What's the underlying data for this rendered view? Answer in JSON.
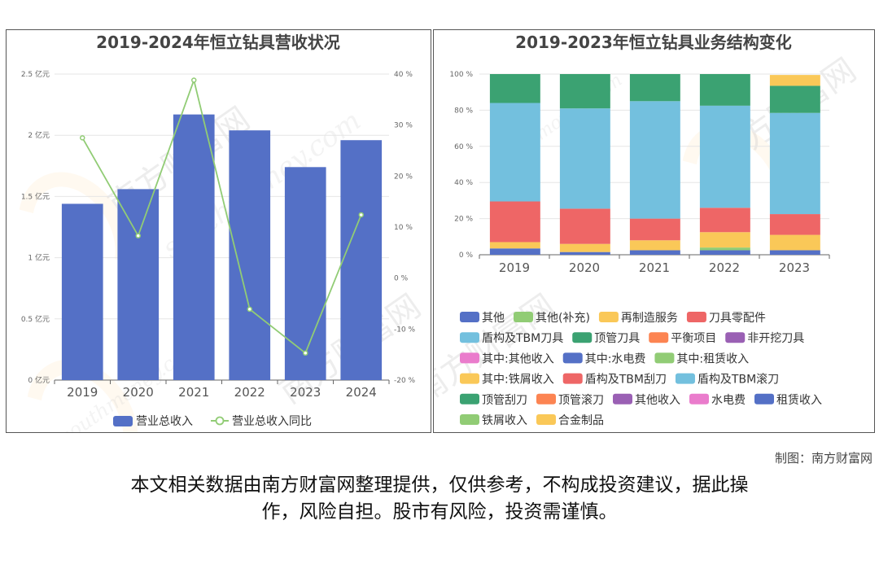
{
  "credit": "制图：南方财富网",
  "disclaimer": {
    "line1": "本文相关数据由南方财富网整理提供，仅供参考，不构成投资建议，据此操",
    "line2": "作，风险自担。股市有风险，投资需谨慎。"
  },
  "watermark": {
    "text_cn": "南方财富网",
    "text_en": "southmoney.com"
  },
  "chart_data": [
    {
      "type": "bar",
      "title": "2019-2024年恒立钻具营收状况",
      "categories": [
        "2019",
        "2020",
        "2021",
        "2022",
        "2023",
        "2024"
      ],
      "series": [
        {
          "name": "营业总收入",
          "kind": "bar",
          "axis": "left",
          "color": "#5470c6",
          "values": [
            1.44,
            1.56,
            2.17,
            2.04,
            1.74,
            1.96
          ]
        },
        {
          "name": "营业总收入同比",
          "kind": "line",
          "axis": "right",
          "color": "#91cc75",
          "values": [
            27.5,
            8.3,
            38.8,
            -6.1,
            -14.7,
            12.4
          ]
        }
      ],
      "y_left": {
        "min": 0,
        "max": 2.5,
        "ticks": [
          "0 亿元",
          "0.5 亿元",
          "1 亿元",
          "1.5 亿元",
          "2 亿元",
          "2.5 亿元"
        ]
      },
      "y_right": {
        "min": -20,
        "max": 40,
        "ticks": [
          "-20 %",
          "-10 %",
          "0 %",
          "10 %",
          "20 %",
          "30 %",
          "40 %"
        ]
      },
      "grid": true,
      "legend_position": "bottom"
    },
    {
      "type": "bar",
      "stacked": true,
      "title": "2019-2023年恒立钻具业务结构变化",
      "categories": [
        "2019",
        "2020",
        "2021",
        "2022",
        "2023"
      ],
      "y_axis": {
        "min": 0,
        "max": 100,
        "ticks": [
          "0 %",
          "20 %",
          "40 %",
          "60 %",
          "80 %",
          "100 %"
        ]
      },
      "series": [
        {
          "name": "其他",
          "color": "#5470c6",
          "values": [
            3.5,
            1.5,
            2.5,
            2.5,
            2.5
          ]
        },
        {
          "name": "其他(补充)",
          "color": "#91cc75",
          "values": [
            0,
            0,
            0,
            1.5,
            0
          ]
        },
        {
          "name": "再制造服务",
          "color": "#fac858",
          "values": [
            3.5,
            4.5,
            5.5,
            8.5,
            8.5
          ]
        },
        {
          "name": "刀具零配件",
          "color": "#ee6666",
          "values": [
            22.5,
            19.5,
            12,
            13.5,
            11.5
          ]
        },
        {
          "name": "盾构及TBM刀具",
          "color": "#73c0de",
          "values": [
            54.5,
            55.5,
            65,
            56.5,
            56
          ]
        },
        {
          "name": "顶管刀具",
          "color": "#3ba272",
          "values": [
            16,
            19,
            15,
            17.5,
            15
          ]
        },
        {
          "name": "平衡项目",
          "color": "#fc8452",
          "values": [
            0,
            0,
            0,
            0,
            0
          ]
        },
        {
          "name": "非开挖刀具",
          "color": "#9a60b4",
          "values": [
            0,
            0,
            0,
            0,
            0
          ]
        },
        {
          "name": "其中:其他收入",
          "color": "#ea7ccc",
          "values": [
            0,
            0,
            0,
            0,
            0
          ]
        },
        {
          "name": "其中:水电费",
          "color": "#5470c6",
          "values": [
            0,
            0,
            0,
            0,
            0
          ]
        },
        {
          "name": "其中:租赁收入",
          "color": "#91cc75",
          "values": [
            0,
            0,
            0,
            0,
            0
          ]
        },
        {
          "name": "其中:铁屑收入",
          "color": "#fac858",
          "values": [
            0,
            0,
            0,
            0,
            0
          ]
        },
        {
          "name": "盾构及TBM刮刀",
          "color": "#ee6666",
          "values": [
            0,
            0,
            0,
            0,
            0
          ]
        },
        {
          "name": "盾构及TBM滚刀",
          "color": "#73c0de",
          "values": [
            0,
            0,
            0,
            0,
            0
          ]
        },
        {
          "name": "顶管刮刀",
          "color": "#3ba272",
          "values": [
            0,
            0,
            0,
            0,
            0
          ]
        },
        {
          "name": "顶管滚刀",
          "color": "#fc8452",
          "values": [
            0,
            0,
            0,
            0,
            0
          ]
        },
        {
          "name": "其他收入",
          "color": "#9a60b4",
          "values": [
            0,
            0,
            0,
            0,
            0
          ]
        },
        {
          "name": "水电费",
          "color": "#ea7ccc",
          "values": [
            0,
            0,
            0,
            0,
            0
          ]
        },
        {
          "name": "租赁收入",
          "color": "#5470c6",
          "values": [
            0,
            0,
            0,
            0,
            0
          ]
        },
        {
          "name": "铁屑收入",
          "color": "#91cc75",
          "values": [
            0,
            0,
            0,
            0,
            0
          ]
        },
        {
          "name": "合金制品",
          "color": "#fac858",
          "values": [
            0,
            0,
            0,
            0,
            6
          ]
        }
      ],
      "grid": true,
      "legend_position": "bottom"
    }
  ]
}
